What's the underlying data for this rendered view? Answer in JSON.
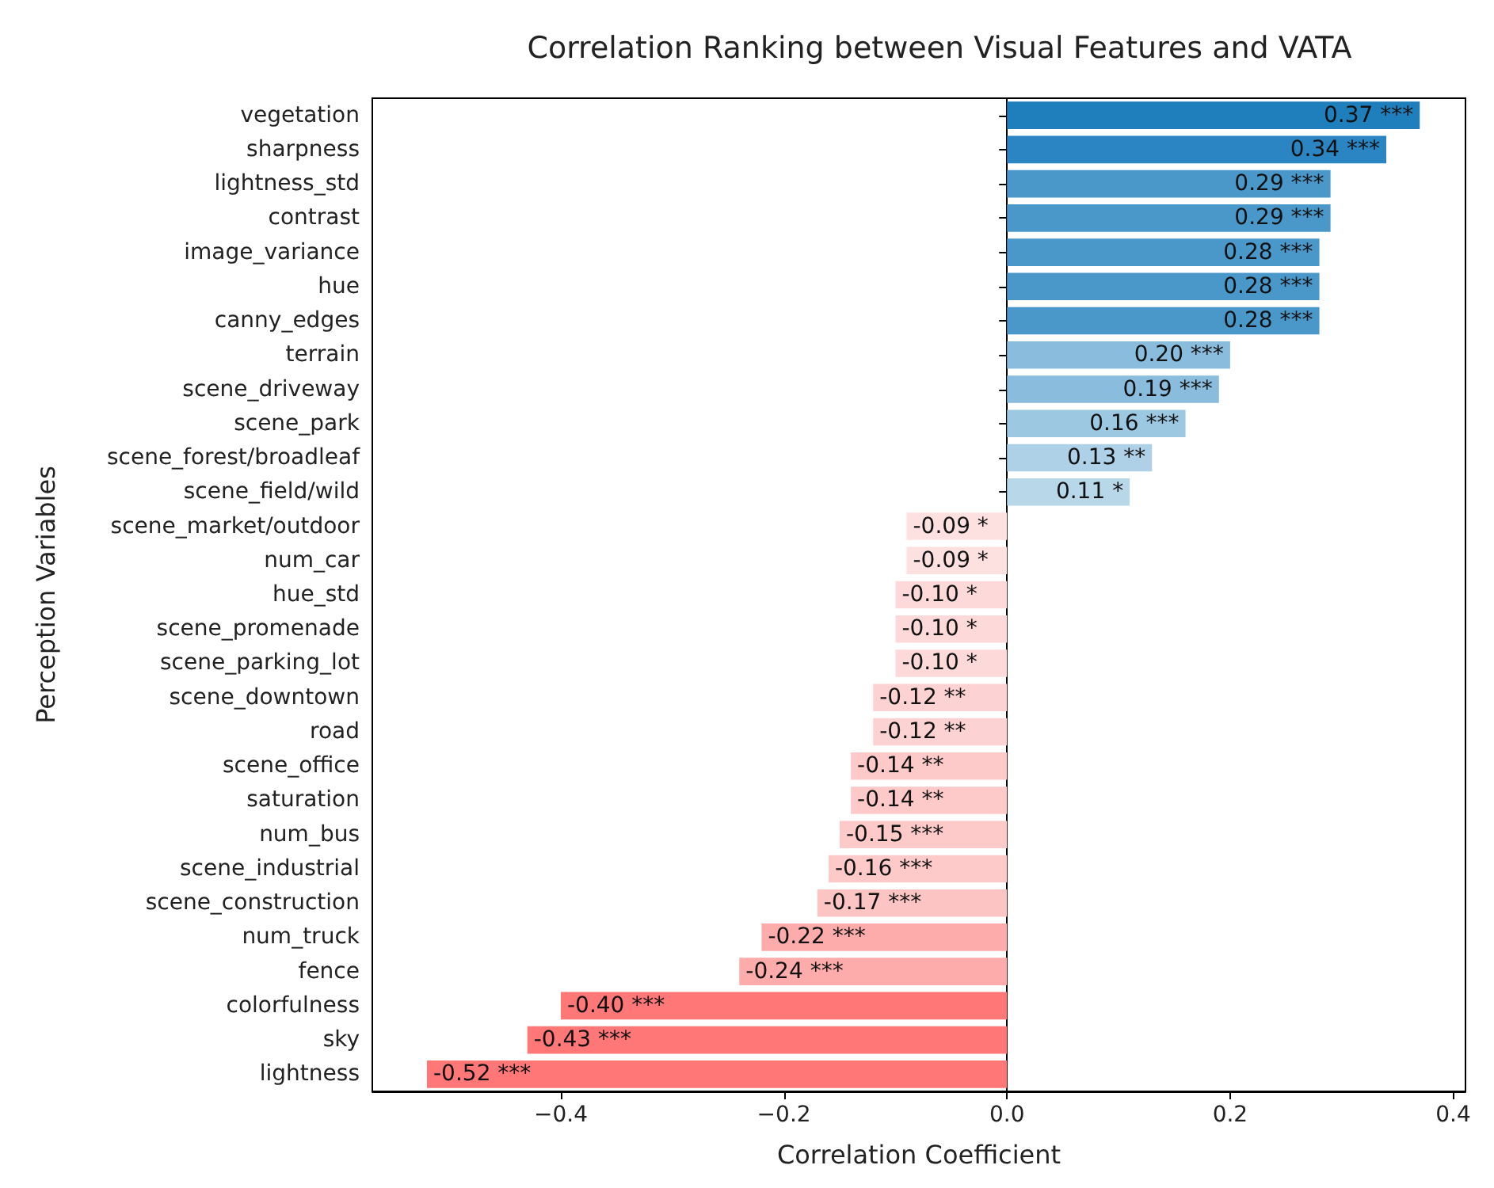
{
  "chart_data": {
    "type": "bar",
    "orientation": "horizontal",
    "title": "Correlation Ranking between Visual Features and VATA",
    "xlabel": "Correlation Coefficient",
    "ylabel": "Perception Variables",
    "categories": [
      "vegetation",
      "sharpness",
      "lightness_std",
      "contrast",
      "image_variance",
      "hue",
      "canny_edges",
      "terrain",
      "scene_driveway",
      "scene_park",
      "scene_forest/broadleaf",
      "scene_field/wild",
      "scene_market/outdoor",
      "num_car",
      "hue_std",
      "scene_promenade",
      "scene_parking_lot",
      "scene_downtown",
      "road",
      "scene_office",
      "saturation",
      "num_bus",
      "scene_industrial",
      "scene_construction",
      "num_truck",
      "fence",
      "colorfulness",
      "sky",
      "lightness"
    ],
    "values": [
      0.37,
      0.34,
      0.29,
      0.29,
      0.28,
      0.28,
      0.28,
      0.2,
      0.19,
      0.16,
      0.13,
      0.11,
      -0.09,
      -0.09,
      -0.1,
      -0.1,
      -0.1,
      -0.12,
      -0.12,
      -0.14,
      -0.14,
      -0.15,
      -0.16,
      -0.17,
      -0.22,
      -0.24,
      -0.4,
      -0.43,
      -0.52
    ],
    "value_labels": [
      "0.37 ***",
      "0.34 ***",
      "0.29 ***",
      "0.29 ***",
      "0.28 ***",
      "0.28 ***",
      "0.28 ***",
      "0.20 ***",
      "0.19 ***",
      "0.16 ***",
      "0.13 **",
      "0.11 *",
      "-0.09 *",
      "-0.09 *",
      "-0.10 *",
      "-0.10 *",
      "-0.10 *",
      "-0.12 **",
      "-0.12 **",
      "-0.14 **",
      "-0.14 **",
      "-0.15 ***",
      "-0.16 ***",
      "-0.17 ***",
      "-0.22 ***",
      "-0.24 ***",
      "-0.40 ***",
      "-0.43 ***",
      "-0.52 ***"
    ],
    "colors": [
      "#1f7ebc",
      "#2a85c2",
      "#4a98c9",
      "#4a98c9",
      "#4a98c9",
      "#4a98c9",
      "#4a98c9",
      "#89bcdd",
      "#89bcdd",
      "#9cc8e2",
      "#aed1e7",
      "#b8d8ea",
      "#fde0e0",
      "#fde0e0",
      "#fdd9d9",
      "#fdd9d9",
      "#fdd9d9",
      "#fdd2d2",
      "#fdd2d2",
      "#fdc9c9",
      "#fdc9c9",
      "#fdc9c9",
      "#fdc9c9",
      "#fdc4c4",
      "#fdabab",
      "#fdabab",
      "#ff7777",
      "#ff7777",
      "#ff7777"
    ],
    "xlim": [
      -0.569,
      0.411
    ],
    "xticks": [
      {
        "value": -0.4,
        "label": "−0.4"
      },
      {
        "value": -0.2,
        "label": "−0.2"
      },
      {
        "value": 0,
        "label": "0.0"
      },
      {
        "value": 0.2,
        "label": "0.2"
      },
      {
        "value": 0.4,
        "label": "0.4"
      }
    ]
  }
}
